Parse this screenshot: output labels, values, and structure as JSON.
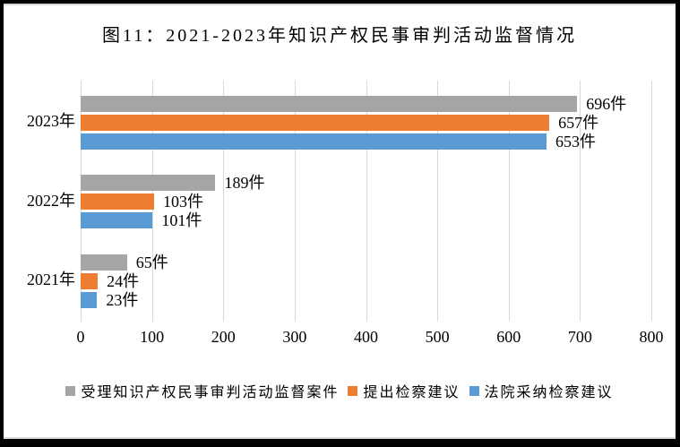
{
  "figure": {
    "background": "#FFFFFF",
    "frame_color": "#000000"
  },
  "chart_data": {
    "type": "bar",
    "orientation": "horizontal",
    "title": "图11：2021-2023年知识产权民事审判活动监督情况",
    "categories": [
      "2023年",
      "2022年",
      "2021年"
    ],
    "series": [
      {
        "name": "受理知识产权民事审判活动监督案件",
        "color": "#A5A5A5",
        "values": [
          696,
          189,
          65
        ],
        "labels": [
          "696件",
          "189件",
          "65件"
        ]
      },
      {
        "name": "提出检察建议",
        "color": "#ED7D31",
        "values": [
          657,
          103,
          24
        ],
        "labels": [
          "657件",
          "103件",
          "24件"
        ]
      },
      {
        "name": "法院采纳检察建议",
        "color": "#5B9BD5",
        "values": [
          653,
          101,
          23
        ],
        "labels": [
          "653件",
          "101件",
          "23件"
        ]
      }
    ],
    "value_unit": "件",
    "xlim": [
      0,
      800
    ],
    "x_ticks": [
      0,
      100,
      200,
      300,
      400,
      500,
      600,
      700,
      800
    ],
    "grid": true,
    "gridline_color": "#D9D9D9",
    "text_color": "#000000",
    "legend_position": "bottom"
  }
}
